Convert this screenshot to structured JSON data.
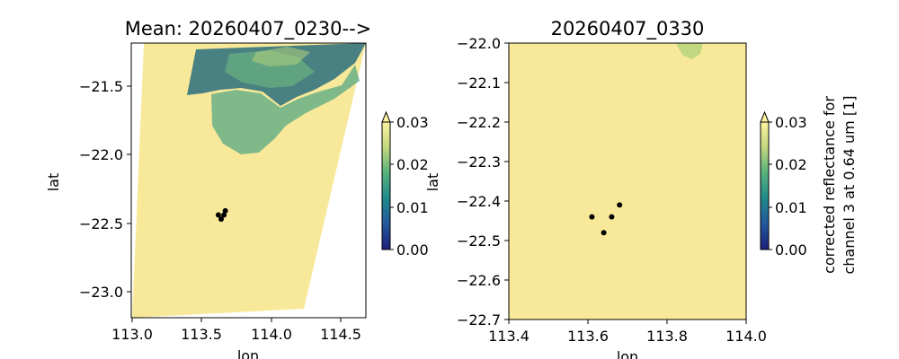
{
  "chart_data": [
    {
      "type": "heatmap",
      "title": "Mean: 20260407_0230-->",
      "xlabel": "lon",
      "ylabel": "lat",
      "xlim": [
        112.99,
        114.69
      ],
      "ylim": [
        -23.2,
        -21.17
      ],
      "xticks": [
        "113.0",
        "113.5",
        "114.0",
        "114.5"
      ],
      "yticks": [
        "−21.5",
        "−22.0",
        "−22.5",
        "−23.0"
      ],
      "swath_corners": [
        [
          113.08,
          -21.17
        ],
        [
          114.69,
          -21.17
        ],
        [
          114.24,
          -23.13
        ],
        [
          113.0,
          -23.2
        ]
      ],
      "points": [
        {
          "lon": 113.62,
          "lat": -22.44
        },
        {
          "lon": 113.64,
          "lat": -22.47
        },
        {
          "lon": 113.66,
          "lat": -22.44
        },
        {
          "lon": 113.67,
          "lat": -22.41
        }
      ],
      "colorbar": {
        "ticks": [
          "0.00",
          "0.01",
          "0.02",
          "0.03"
        ],
        "min": 0.0,
        "max": 0.03,
        "extend": "max",
        "label": ""
      }
    },
    {
      "type": "heatmap",
      "title": "20260407_0330",
      "xlabel": "lon",
      "ylabel": "lat",
      "xlim": [
        113.4,
        114.0
      ],
      "ylim": [
        -22.7,
        -22.0
      ],
      "xticks": [
        "113.4",
        "113.6",
        "113.8",
        "114.0"
      ],
      "yticks": [
        "−22.0",
        "−22.1",
        "−22.2",
        "−22.3",
        "−22.4",
        "−22.5",
        "−22.6",
        "−22.7"
      ],
      "points": [
        {
          "lon": 113.61,
          "lat": -22.44
        },
        {
          "lon": 113.64,
          "lat": -22.48
        },
        {
          "lon": 113.66,
          "lat": -22.44
        },
        {
          "lon": 113.68,
          "lat": -22.41
        }
      ],
      "colorbar": {
        "ticks": [
          "0.00",
          "0.01",
          "0.02",
          "0.03"
        ],
        "min": 0.0,
        "max": 0.03,
        "extend": "max",
        "label_line1": "corrected reflectance for",
        "label_line2": "channel 3 at 0.64 um [1]"
      }
    }
  ],
  "colors": {
    "background": "#ffffff",
    "field_high": "#f8e99a",
    "field_mid": "#58a883",
    "field_low": "#2a6f7e",
    "point": "#000000",
    "cmap": [
      "#1e1f7c",
      "#23579b",
      "#1f8a8c",
      "#57b17c",
      "#c2d67e",
      "#fdf4a0"
    ]
  }
}
